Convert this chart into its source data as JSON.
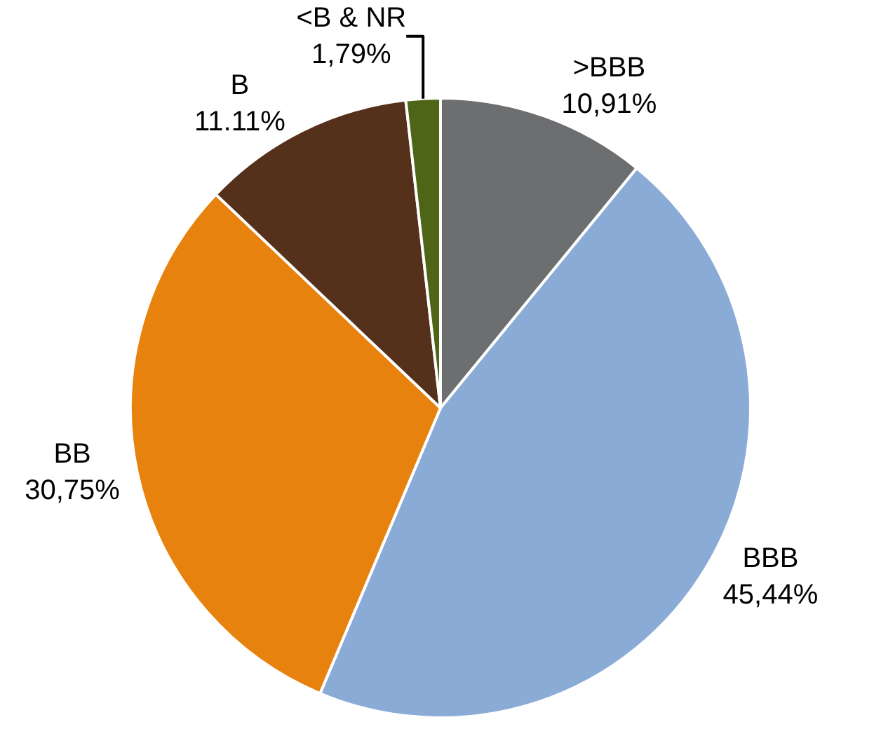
{
  "chart_data": {
    "type": "pie",
    "categories": [
      ">BBB",
      "BBB",
      "BB",
      "B",
      "<B & NR"
    ],
    "values": [
      10.91,
      45.44,
      30.75,
      11.11,
      1.79
    ],
    "value_labels": [
      "10,91%",
      "45,44%",
      "30,75%",
      "11.11%",
      "1,79%"
    ],
    "colors": [
      "#6d6e70",
      "#8aabd6",
      "#e8820f",
      "#55301a",
      "#4e6518"
    ],
    "legend": false
  }
}
